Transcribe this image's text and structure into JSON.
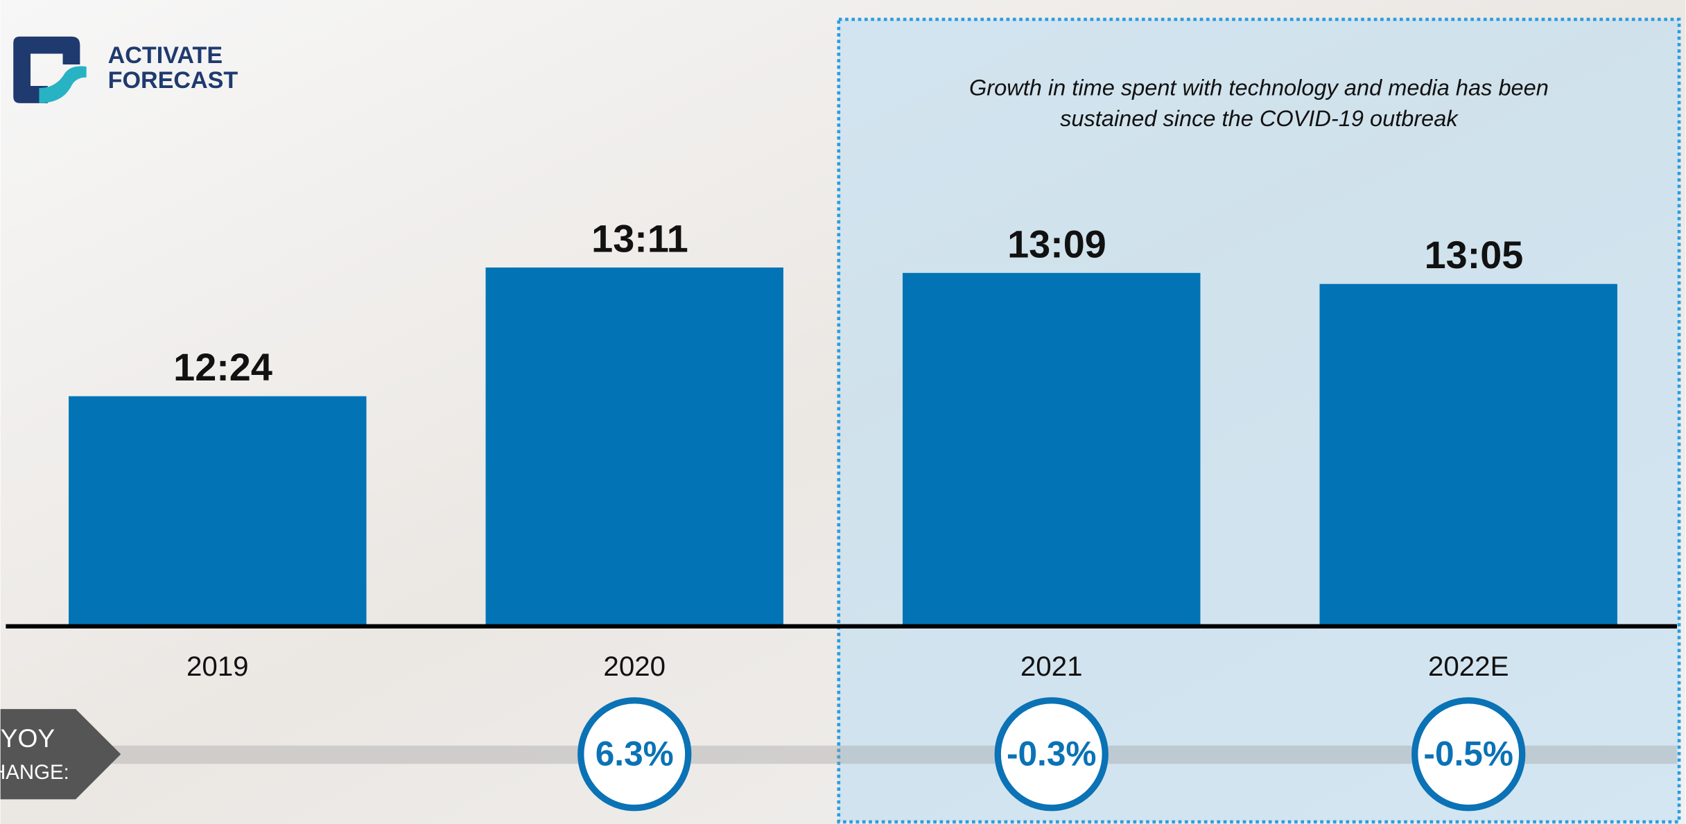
{
  "logo": [
    "ACTIVATE",
    "FORECAST"
  ],
  "chart_data": {
    "type": "bar",
    "annotation": [
      "Growth in time spent with technology and media has been",
      "sustained since the COVID-19 outbreak"
    ],
    "categories": [
      "2019",
      "2020",
      "2021",
      "2022E"
    ],
    "values": [
      12.4,
      13.183,
      13.15,
      13.083
    ],
    "value_labels": [
      "12:24",
      "13:11",
      "13:09",
      "13:05"
    ],
    "color": "#0274b6",
    "ylim": [
      11,
      14
    ],
    "yoy_change": {
      "label": [
        "YOY",
        "CHANGE:"
      ],
      "values": [
        null,
        6.3,
        -0.3,
        -0.5
      ],
      "value_labels": [
        null,
        "6.3%",
        "-0.3%",
        "-0.5%"
      ],
      "color": "#0a72b5"
    }
  }
}
